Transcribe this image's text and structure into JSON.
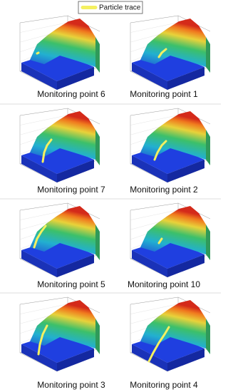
{
  "legend": {
    "label": "Particle trace"
  },
  "panels": [
    {
      "caption": "Monitoring point 6"
    },
    {
      "caption": "Monitoring point 1"
    },
    {
      "caption": "Monitoring point 7"
    },
    {
      "caption": "Monitoring point 2"
    },
    {
      "caption": "Monitoring point 5"
    },
    {
      "caption": "Monitoring point 10"
    },
    {
      "caption": "Monitoring point 3"
    },
    {
      "caption": "Monitoring point 4"
    }
  ]
}
